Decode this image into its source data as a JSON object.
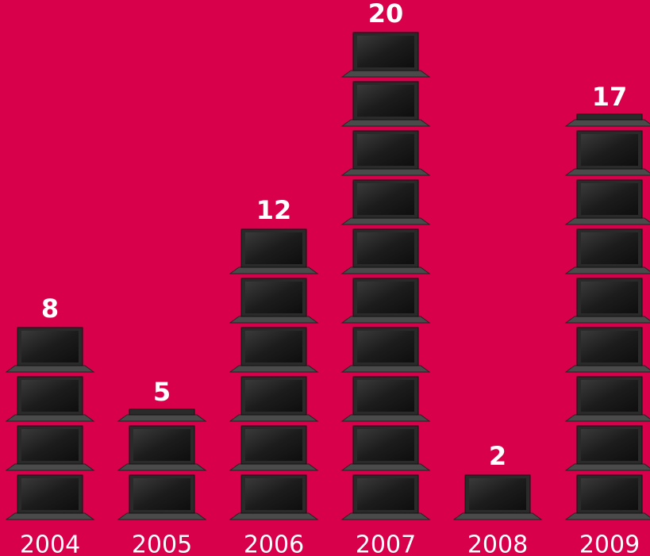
{
  "chart_data": {
    "type": "pictograph",
    "categories": [
      "2004",
      "2005",
      "2006",
      "2007",
      "2008",
      "2009"
    ],
    "values": [
      8,
      5,
      12,
      20,
      2,
      17
    ]
  }
}
